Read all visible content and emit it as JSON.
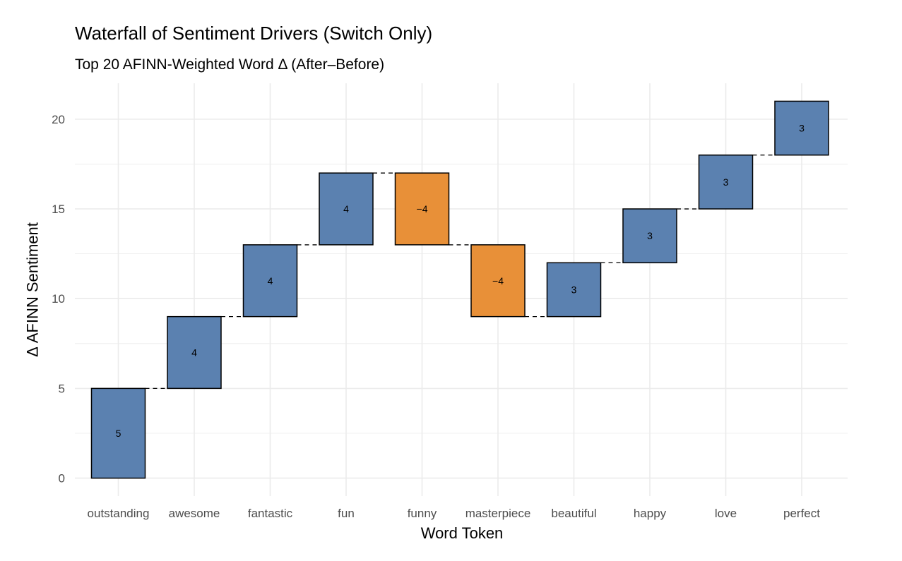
{
  "chart_data": {
    "type": "bar",
    "subtype": "waterfall",
    "title": "Waterfall of Sentiment Drivers (Switch Only)",
    "subtitle": "Top 20 AFINN‐Weighted Word Δ (After–Before)",
    "xlabel": "Word Token",
    "ylabel": "Δ AFINN Sentiment",
    "categories": [
      "outstanding",
      "awesome",
      "fantastic",
      "fun",
      "funny",
      "masterpiece",
      "beautiful",
      "happy",
      "love",
      "perfect"
    ],
    "values": [
      5,
      4,
      4,
      4,
      -4,
      -4,
      3,
      3,
      3,
      3
    ],
    "value_labels": [
      "5",
      "4",
      "4",
      "4",
      "−4",
      "−4",
      "3",
      "3",
      "3",
      "3"
    ],
    "start": [
      0,
      5,
      9,
      13,
      17,
      13,
      9,
      12,
      15,
      18
    ],
    "end": [
      5,
      9,
      13,
      17,
      13,
      9,
      12,
      15,
      18,
      21
    ],
    "ylim": [
      -1,
      22
    ],
    "yticks": [
      0,
      5,
      10,
      15,
      20
    ],
    "grid": true,
    "connectors": "dashed",
    "colors": {
      "positive": "#5b81b0",
      "negative": "#e89038",
      "grid": "#ebebeb",
      "bar_outline": "#000000"
    }
  }
}
